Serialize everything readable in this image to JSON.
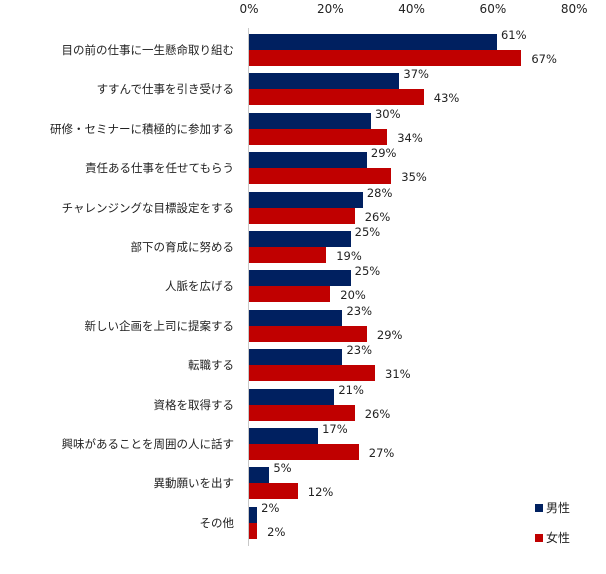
{
  "chart_data": {
    "type": "bar",
    "orientation": "horizontal",
    "title": "",
    "xlabel": "",
    "ylabel": "",
    "xlim": [
      0,
      80
    ],
    "x_ticks": [
      "0%",
      "20%",
      "40%",
      "60%",
      "80%"
    ],
    "tick_position": "top",
    "grid": false,
    "legend_position": "bottom-right",
    "categories": [
      "目の前の仕事に一生懸命取り組む",
      "すすんで仕事を引き受ける",
      "研修・セミナーに積極的に参加する",
      "責任ある仕事を任せてもらう",
      "チャレンジングな目標設定をする",
      "部下の育成に努める",
      "人脈を広げる",
      "新しい企画を上司に提案する",
      "転職する",
      "資格を取得する",
      "興味があることを周囲の人に話す",
      "異動願いを出す",
      "その他"
    ],
    "series": [
      {
        "name": "男性",
        "color": "#002060",
        "values": [
          61,
          37,
          30,
          29,
          28,
          25,
          25,
          23,
          23,
          21,
          17,
          5,
          2
        ]
      },
      {
        "name": "女性",
        "color": "#c00000",
        "values": [
          67,
          43,
          34,
          35,
          26,
          19,
          20,
          29,
          31,
          26,
          27,
          12,
          2
        ]
      }
    ],
    "value_suffix": "%"
  },
  "legend": {
    "items": [
      {
        "label": "男性",
        "color": "#002060"
      },
      {
        "label": "女性",
        "color": "#c00000"
      }
    ]
  }
}
